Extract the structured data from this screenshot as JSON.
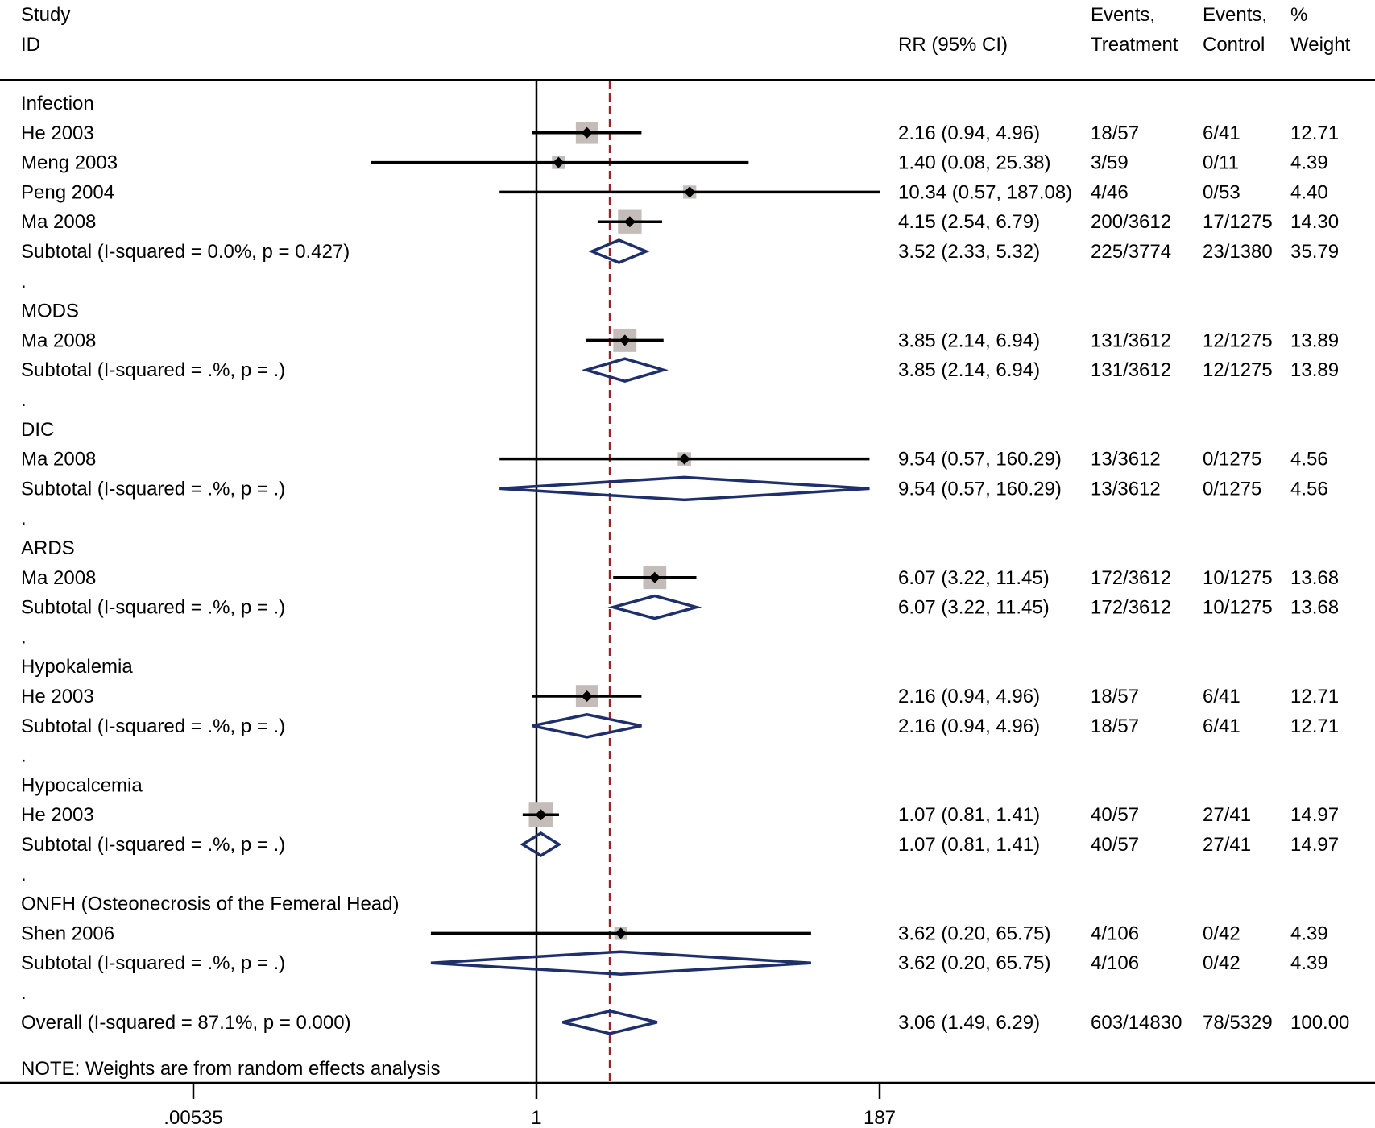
{
  "header": {
    "study_line1": "Study",
    "study_line2": "ID",
    "effect_label": "RR (95% CI)",
    "col_treat_line1": "Events,",
    "col_treat_line2": "Treatment",
    "col_ctrl_line1": "Events,",
    "col_ctrl_line2": "Control",
    "col_weight_line1": "%",
    "col_weight_line2": "Weight"
  },
  "note": "NOTE: Weights are from random effects analysis",
  "colors": {
    "ci_line": "#000000",
    "point": "#000000",
    "weight_box": "#c4bcb9",
    "diamond": "#1f2f6b",
    "overall_line": "#9b2226"
  },
  "chart_data": {
    "type": "forest",
    "scale": "log",
    "x_ticks": [
      ".00535",
      "1",
      "187"
    ],
    "x_tick_values": [
      0.00535,
      1,
      187
    ],
    "reference_line": 1,
    "overall_line": 3.06,
    "rows": [
      {
        "kind": "group",
        "label": "Infection"
      },
      {
        "kind": "study",
        "label": "He 2003",
        "rr": 2.16,
        "lo": 0.94,
        "hi": 4.96,
        "ci_text": "2.16 (0.94, 4.96)",
        "treatment": "18/57",
        "control": "6/41",
        "weight": "12.71"
      },
      {
        "kind": "study",
        "label": "Meng 2003",
        "rr": 1.4,
        "lo": 0.08,
        "hi": 25.38,
        "ci_text": "1.40 (0.08, 25.38)",
        "treatment": "3/59",
        "control": "0/11",
        "weight": "4.39"
      },
      {
        "kind": "study",
        "label": "Peng 2004",
        "rr": 10.34,
        "lo": 0.57,
        "hi": 187.08,
        "ci_text": "10.34 (0.57, 187.08)",
        "treatment": "4/46",
        "control": "0/53",
        "weight": "4.40"
      },
      {
        "kind": "study",
        "label": "Ma 2008",
        "rr": 4.15,
        "lo": 2.54,
        "hi": 6.79,
        "ci_text": "4.15 (2.54, 6.79)",
        "treatment": "200/3612",
        "control": "17/1275",
        "weight": "14.30"
      },
      {
        "kind": "subtotal",
        "label": "Subtotal  (I-squared = 0.0%, p = 0.427)",
        "rr": 3.52,
        "lo": 2.33,
        "hi": 5.32,
        "ci_text": "3.52 (2.33, 5.32)",
        "treatment": "225/3774",
        "control": "23/1380",
        "weight": "35.79"
      },
      {
        "kind": "dot",
        "label": "."
      },
      {
        "kind": "group",
        "label": "MODS"
      },
      {
        "kind": "study",
        "label": "Ma 2008",
        "rr": 3.85,
        "lo": 2.14,
        "hi": 6.94,
        "ci_text": "3.85 (2.14, 6.94)",
        "treatment": "131/3612",
        "control": "12/1275",
        "weight": "13.89"
      },
      {
        "kind": "subtotal",
        "label": "Subtotal  (I-squared = .%, p = .)",
        "rr": 3.85,
        "lo": 2.14,
        "hi": 6.94,
        "ci_text": "3.85 (2.14, 6.94)",
        "treatment": "131/3612",
        "control": "12/1275",
        "weight": "13.89"
      },
      {
        "kind": "dot",
        "label": "."
      },
      {
        "kind": "group",
        "label": "DIC"
      },
      {
        "kind": "study",
        "label": "Ma 2008",
        "rr": 9.54,
        "lo": 0.57,
        "hi": 160.29,
        "ci_text": "9.54 (0.57, 160.29)",
        "treatment": "13/3612",
        "control": "0/1275",
        "weight": "4.56"
      },
      {
        "kind": "subtotal",
        "label": "Subtotal  (I-squared = .%, p = .)",
        "rr": 9.54,
        "lo": 0.57,
        "hi": 160.29,
        "ci_text": "9.54 (0.57, 160.29)",
        "treatment": "13/3612",
        "control": "0/1275",
        "weight": "4.56"
      },
      {
        "kind": "dot",
        "label": "."
      },
      {
        "kind": "group",
        "label": "ARDS"
      },
      {
        "kind": "study",
        "label": "Ma 2008",
        "rr": 6.07,
        "lo": 3.22,
        "hi": 11.45,
        "ci_text": "6.07 (3.22, 11.45)",
        "treatment": "172/3612",
        "control": "10/1275",
        "weight": "13.68"
      },
      {
        "kind": "subtotal",
        "label": "Subtotal  (I-squared = .%, p = .)",
        "rr": 6.07,
        "lo": 3.22,
        "hi": 11.45,
        "ci_text": "6.07 (3.22, 11.45)",
        "treatment": "172/3612",
        "control": "10/1275",
        "weight": "13.68"
      },
      {
        "kind": "dot",
        "label": "."
      },
      {
        "kind": "group",
        "label": "Hypokalemia"
      },
      {
        "kind": "study",
        "label": "He 2003",
        "rr": 2.16,
        "lo": 0.94,
        "hi": 4.96,
        "ci_text": "2.16 (0.94, 4.96)",
        "treatment": "18/57",
        "control": "6/41",
        "weight": "12.71"
      },
      {
        "kind": "subtotal",
        "label": "Subtotal  (I-squared = .%, p = .)",
        "rr": 2.16,
        "lo": 0.94,
        "hi": 4.96,
        "ci_text": "2.16 (0.94, 4.96)",
        "treatment": "18/57",
        "control": "6/41",
        "weight": "12.71"
      },
      {
        "kind": "dot",
        "label": "."
      },
      {
        "kind": "group",
        "label": "Hypocalcemia"
      },
      {
        "kind": "study",
        "label": "He 2003",
        "rr": 1.07,
        "lo": 0.81,
        "hi": 1.41,
        "ci_text": "1.07 (0.81, 1.41)",
        "treatment": "40/57",
        "control": "27/41",
        "weight": "14.97"
      },
      {
        "kind": "subtotal",
        "label": "Subtotal  (I-squared = .%, p = .)",
        "rr": 1.07,
        "lo": 0.81,
        "hi": 1.41,
        "ci_text": "1.07 (0.81, 1.41)",
        "treatment": "40/57",
        "control": "27/41",
        "weight": "14.97"
      },
      {
        "kind": "dot",
        "label": "."
      },
      {
        "kind": "group",
        "label": "ONFH (Osteonecrosis of the Femeral Head)"
      },
      {
        "kind": "study",
        "label": "Shen 2006",
        "rr": 3.62,
        "lo": 0.2,
        "hi": 65.75,
        "ci_text": "3.62 (0.20, 65.75)",
        "treatment": "4/106",
        "control": "0/42",
        "weight": "4.39"
      },
      {
        "kind": "subtotal",
        "label": "Subtotal  (I-squared = .%, p = .)",
        "rr": 3.62,
        "lo": 0.2,
        "hi": 65.75,
        "ci_text": "3.62 (0.20, 65.75)",
        "treatment": "4/106",
        "control": "0/42",
        "weight": "4.39"
      },
      {
        "kind": "dot",
        "label": "."
      },
      {
        "kind": "overall",
        "label": "Overall  (I-squared = 87.1%, p = 0.000)",
        "rr": 3.06,
        "lo": 1.49,
        "hi": 6.29,
        "ci_text": "3.06 (1.49, 6.29)",
        "treatment": "603/14830",
        "control": "78/5329",
        "weight": "100.00"
      }
    ]
  }
}
